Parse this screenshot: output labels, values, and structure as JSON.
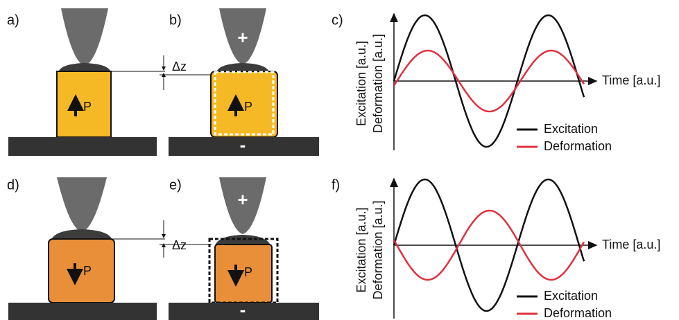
{
  "panels": [
    {
      "label": "a)",
      "polarization": "P"
    },
    {
      "label": "b)",
      "polarization": "P",
      "delta": "Δz",
      "tip_charge": "+",
      "substrate_charge": "-"
    },
    {
      "label": "d)",
      "polarization": "P"
    },
    {
      "label": "e)",
      "polarization": "P",
      "delta": "Δz",
      "tip_charge": "+",
      "substrate_charge": "-"
    }
  ],
  "plots": [
    {
      "label": "c)",
      "y_label_1": "Excitation [a.u.]",
      "y_label_2": "Deformation [a.u.]",
      "x_label": "Time [a.u.]",
      "legend": [
        "Excitation",
        "Deformation"
      ]
    },
    {
      "label": "f)",
      "y_label_1": "Excitation [a.u.]",
      "y_label_2": "Deformation [a.u.]",
      "x_label": "Time [a.u.]",
      "legend": [
        "Excitation",
        "Deformation"
      ]
    }
  ]
}
